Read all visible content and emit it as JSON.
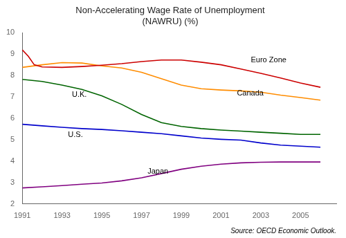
{
  "chart_data": {
    "type": "line",
    "title": "Non-Accelerating Wage Rate of Unemployment\n(NAWRU) (%)",
    "source": "Source: OECD Economic Outlook.",
    "xlim": [
      1991,
      2006.8
    ],
    "xticks": [
      1991,
      1993,
      1995,
      1997,
      1999,
      2001,
      2003,
      2005
    ],
    "ylim": [
      2,
      10
    ],
    "yticks": [
      2,
      3,
      4,
      5,
      6,
      7,
      8,
      9,
      10
    ],
    "grid": false,
    "series": [
      {
        "name": "Euro Zone",
        "color": "#cc0000",
        "x": [
          1991,
          1991.3,
          1991.6,
          1992,
          1993,
          1994,
          1995,
          1996,
          1997,
          1998,
          1999,
          2000,
          2001,
          2002,
          2003,
          2004,
          2005,
          2006
        ],
        "values": [
          9.2,
          8.9,
          8.5,
          8.4,
          8.38,
          8.42,
          8.48,
          8.55,
          8.65,
          8.72,
          8.72,
          8.62,
          8.5,
          8.3,
          8.1,
          7.88,
          7.65,
          7.45
        ]
      },
      {
        "name": "Canada",
        "color": "#ff8c00",
        "x": [
          1991,
          1992,
          1993,
          1994,
          1995,
          1996,
          1997,
          1998,
          1999,
          2000,
          2001,
          2002,
          2003,
          2004,
          2005,
          2006
        ],
        "values": [
          8.38,
          8.5,
          8.6,
          8.58,
          8.45,
          8.35,
          8.15,
          7.85,
          7.55,
          7.38,
          7.32,
          7.28,
          7.22,
          7.08,
          6.97,
          6.85
        ]
      },
      {
        "name": "U.K.",
        "color": "#006400",
        "x": [
          1991,
          1992,
          1993,
          1994,
          1995,
          1996,
          1997,
          1998,
          1999,
          2000,
          2001,
          2002,
          2003,
          2004,
          2005,
          2006
        ],
        "values": [
          7.82,
          7.72,
          7.55,
          7.35,
          7.05,
          6.65,
          6.18,
          5.8,
          5.62,
          5.52,
          5.45,
          5.4,
          5.35,
          5.3,
          5.25,
          5.25
        ]
      },
      {
        "name": "U.S.",
        "color": "#0000cc",
        "x": [
          1991,
          1992,
          1993,
          1994,
          1995,
          1996,
          1997,
          1998,
          1999,
          2000,
          2001,
          2002,
          2003,
          2004,
          2005,
          2006
        ],
        "values": [
          5.72,
          5.65,
          5.58,
          5.52,
          5.48,
          5.42,
          5.35,
          5.28,
          5.18,
          5.08,
          5.02,
          4.98,
          4.85,
          4.75,
          4.7,
          4.65
        ]
      },
      {
        "name": "Japan",
        "color": "#800080",
        "x": [
          1991,
          1992,
          1993,
          1994,
          1995,
          1996,
          1997,
          1998,
          1999,
          2000,
          2001,
          2002,
          2003,
          2004,
          2005,
          2006
        ],
        "values": [
          2.75,
          2.8,
          2.86,
          2.92,
          2.98,
          3.08,
          3.22,
          3.42,
          3.62,
          3.76,
          3.86,
          3.92,
          3.95,
          3.96,
          3.96,
          3.96
        ]
      }
    ],
    "annotations": [
      {
        "text": "Euro Zone",
        "x": 2002.5,
        "y": 8.72
      },
      {
        "text": "Canada",
        "x": 2001.8,
        "y": 7.15
      },
      {
        "text": "U.K.",
        "x": 1993.5,
        "y": 7.1
      },
      {
        "text": "U.S.",
        "x": 1993.3,
        "y": 5.22
      },
      {
        "text": "Japan",
        "x": 1997.3,
        "y": 3.52
      }
    ]
  }
}
